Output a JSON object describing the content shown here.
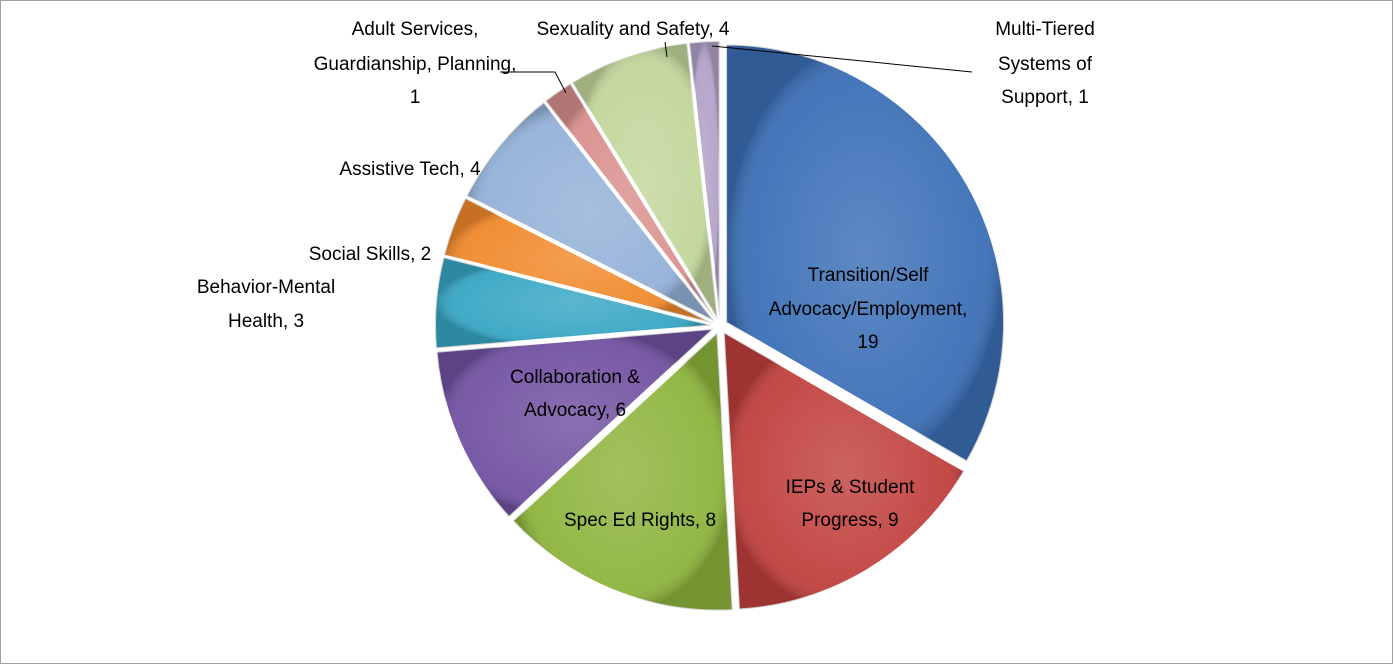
{
  "chart_data": {
    "type": "pie",
    "values": [
      19,
      9,
      8,
      6,
      3,
      2,
      4,
      1,
      4,
      1
    ],
    "value_labels": [
      [
        "Transition/Self",
        "Advocacy/Employment,",
        "19"
      ],
      [
        "IEPs & Student",
        "Progress, 9"
      ],
      [
        "Spec Ed Rights, 8"
      ],
      [
        "Collaboration &",
        "Advocacy, 6"
      ],
      [
        "Behavior-Mental",
        "Health, 3"
      ],
      [
        "Social Skills, 2"
      ],
      [
        "Assistive Tech, 4"
      ],
      [
        "Adult Services,",
        "Guardianship, Planning,",
        "1"
      ],
      [
        "Sexuality and Safety, 4"
      ],
      [
        "Multi-Tiered",
        "Systems of",
        "Support, 1"
      ]
    ],
    "colors": [
      "#3b6fb6",
      "#c0403d",
      "#8db43c",
      "#7151a1",
      "#37a6c4",
      "#f0892b",
      "#93b1d8",
      "#d98f8d",
      "#c2d69a",
      "#b2a1c8"
    ]
  }
}
